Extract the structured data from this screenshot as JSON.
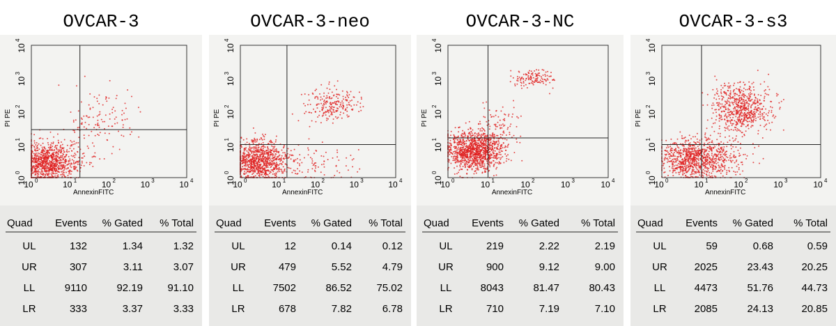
{
  "tick_base": "10",
  "tick_exponents": [
    "0",
    "1",
    "2",
    "3",
    "4"
  ],
  "panels": [
    {
      "title": "OVCAR-3",
      "x_label": "AnnexinFITC",
      "y_label": "PI PE",
      "table": {
        "header": [
          "Quad",
          "Events",
          "% Gated",
          "% Total"
        ],
        "rows": [
          [
            "UL",
            "132",
            "1.34",
            "1.32"
          ],
          [
            "UR",
            "307",
            "3.11",
            "3.07"
          ],
          [
            "LL",
            "9110",
            "92.19",
            "91.10"
          ],
          [
            "LR",
            "333",
            "3.37",
            "3.33"
          ]
        ]
      }
    },
    {
      "title": "OVCAR-3-neo",
      "x_label": "AnnexinFITC",
      "y_label": "PI PE",
      "table": {
        "header": [
          "Quad",
          "Events",
          "% Gated",
          "% Total"
        ],
        "rows": [
          [
            "UL",
            "12",
            "0.14",
            "0.12"
          ],
          [
            "UR",
            "479",
            "5.52",
            "4.79"
          ],
          [
            "LL",
            "7502",
            "86.52",
            "75.02"
          ],
          [
            "LR",
            "678",
            "7.82",
            "6.78"
          ]
        ]
      }
    },
    {
      "title": "OVCAR-3-NC",
      "x_label": "AnnexinFITC",
      "y_label": "PI PE",
      "table": {
        "header": [
          "Quad",
          "Events",
          "% Gated",
          "% Total"
        ],
        "rows": [
          [
            "UL",
            "219",
            "2.22",
            "2.19"
          ],
          [
            "UR",
            "900",
            "9.12",
            "9.00"
          ],
          [
            "LL",
            "8043",
            "81.47",
            "80.43"
          ],
          [
            "LR",
            "710",
            "7.19",
            "7.10"
          ]
        ]
      }
    },
    {
      "title": "OVCAR-3-s3",
      "x_label": "AnnexinFITC",
      "y_label": "PI PE",
      "table": {
        "header": [
          "Quad",
          "Events",
          "% Gated",
          "% Total"
        ],
        "rows": [
          [
            "UL",
            "59",
            "0.68",
            "0.59"
          ],
          [
            "UR",
            "2025",
            "23.43",
            "20.25"
          ],
          [
            "LL",
            "4473",
            "51.76",
            "44.73"
          ],
          [
            "LR",
            "2085",
            "24.13",
            "20.85"
          ]
        ]
      }
    }
  ]
}
